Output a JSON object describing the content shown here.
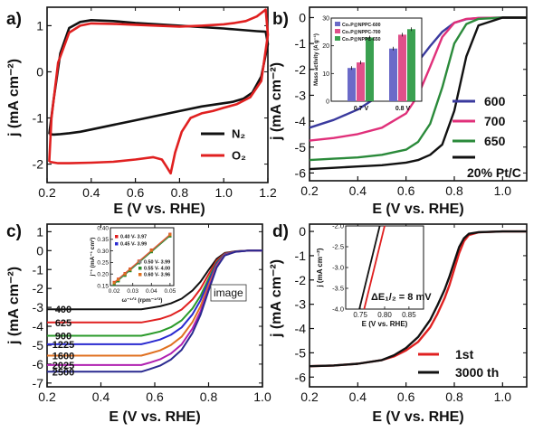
{
  "figure_tag": "image",
  "chart_data": [
    {
      "panel": "a)",
      "type": "line",
      "xlabel": "E (V vs. RHE)",
      "ylabel": "j (mA cm⁻²)",
      "xlim": [
        0.2,
        1.2
      ],
      "ylim": [
        -2.4,
        1.4
      ],
      "xticks": [
        "0.2",
        "0.4",
        "0.6",
        "0.8",
        "1.0",
        "1.2"
      ],
      "yticks": [
        "1",
        "0",
        "-1",
        "-2"
      ],
      "legend_position": "bottom-right",
      "series": [
        {
          "name": "N₂",
          "color": "#111111",
          "x": [
            0.21,
            0.23,
            0.26,
            0.3,
            0.35,
            0.4,
            0.5,
            0.6,
            0.7,
            0.8,
            0.9,
            1.0,
            1.05,
            1.1,
            1.15,
            1.19,
            1.2,
            1.17,
            1.13,
            1.09,
            1.04,
            1.0,
            0.9,
            0.8,
            0.7,
            0.6,
            0.5,
            0.4,
            0.35,
            0.3,
            0.26,
            0.23,
            0.21
          ],
          "y": [
            -1.35,
            -0.6,
            0.4,
            0.95,
            1.08,
            1.12,
            1.1,
            1.06,
            1.03,
            1.0,
            0.97,
            0.94,
            0.92,
            0.9,
            0.88,
            0.87,
            0.6,
            -0.1,
            -0.45,
            -0.58,
            -0.65,
            -0.68,
            -0.75,
            -0.85,
            -0.95,
            -1.05,
            -1.15,
            -1.25,
            -1.3,
            -1.33,
            -1.35,
            -1.36,
            -1.35
          ]
        },
        {
          "name": "O₂",
          "color": "#e02020",
          "x": [
            0.21,
            0.22,
            0.25,
            0.3,
            0.35,
            0.4,
            0.5,
            0.6,
            0.7,
            0.8,
            0.9,
            1.0,
            1.05,
            1.1,
            1.15,
            1.19,
            1.2,
            1.17,
            1.12,
            1.06,
            1.0,
            0.95,
            0.9,
            0.85,
            0.81,
            0.78,
            0.76,
            0.74,
            0.72,
            0.68,
            0.6,
            0.5,
            0.4,
            0.3,
            0.25,
            0.21
          ],
          "y": [
            -1.95,
            -1.0,
            0.2,
            0.85,
            1.0,
            1.05,
            1.04,
            1.02,
            1.0,
            0.98,
            1.0,
            1.03,
            1.06,
            1.1,
            1.2,
            1.35,
            0.8,
            -0.2,
            -0.55,
            -0.7,
            -0.78,
            -0.85,
            -0.9,
            -1.0,
            -1.3,
            -1.75,
            -2.2,
            -2.05,
            -1.9,
            -1.85,
            -1.9,
            -1.95,
            -1.97,
            -1.98,
            -1.98,
            -1.95
          ]
        }
      ]
    },
    {
      "panel": "b)",
      "type": "line",
      "xlabel": "E (V vs. RHE)",
      "ylabel": "j (mA cm⁻²)",
      "xlim": [
        0.2,
        1.1
      ],
      "ylim": [
        -6.3,
        0.4
      ],
      "xticks": [
        "0.2",
        "0.4",
        "0.6",
        "0.8",
        "1.0"
      ],
      "yticks": [
        "0",
        "-1",
        "-2",
        "-3",
        "-4",
        "-5",
        "-6"
      ],
      "legend_position": "right",
      "series": [
        {
          "name": "600",
          "color": "#3a3a9e",
          "x": [
            0.2,
            0.3,
            0.4,
            0.5,
            0.6,
            0.65,
            0.7,
            0.75,
            0.8,
            0.85,
            0.9,
            1.0,
            1.1
          ],
          "y": [
            -4.25,
            -3.95,
            -3.55,
            -2.95,
            -2.2,
            -1.7,
            -1.1,
            -0.55,
            -0.2,
            -0.06,
            -0.02,
            0.0,
            0.0
          ]
        },
        {
          "name": "700",
          "color": "#e0307a",
          "x": [
            0.2,
            0.3,
            0.4,
            0.5,
            0.6,
            0.65,
            0.7,
            0.75,
            0.8,
            0.85,
            0.9,
            1.0,
            1.1
          ],
          "y": [
            -4.75,
            -4.65,
            -4.5,
            -4.25,
            -3.7,
            -3.0,
            -1.9,
            -0.75,
            -0.2,
            -0.05,
            -0.02,
            0.0,
            0.0
          ]
        },
        {
          "name": "650",
          "color": "#2a8a3a",
          "x": [
            0.2,
            0.3,
            0.4,
            0.5,
            0.6,
            0.65,
            0.7,
            0.75,
            0.8,
            0.85,
            0.9,
            1.0,
            1.1
          ],
          "y": [
            -5.5,
            -5.45,
            -5.4,
            -5.3,
            -5.1,
            -4.8,
            -4.1,
            -2.7,
            -1.0,
            -0.25,
            -0.05,
            0.0,
            0.0
          ]
        },
        {
          "name": "20% Pt/C",
          "color": "#111111",
          "x": [
            0.2,
            0.3,
            0.4,
            0.5,
            0.6,
            0.65,
            0.7,
            0.75,
            0.8,
            0.85,
            0.9,
            1.0,
            1.1
          ],
          "y": [
            -5.85,
            -5.8,
            -5.75,
            -5.7,
            -5.6,
            -5.5,
            -5.3,
            -4.9,
            -3.6,
            -1.5,
            -0.3,
            0.0,
            0.0
          ]
        }
      ]
    },
    {
      "panel": "b) inset",
      "type": "bar",
      "ylabel": "Mass activity (A g⁻¹)",
      "ylim": [
        0,
        30
      ],
      "categories": [
        "0.7 V",
        "0.8 V"
      ],
      "series": [
        {
          "name": "Co₂P@NPPC-600",
          "color": "#6a6ac8",
          "values": [
            12,
            19
          ]
        },
        {
          "name": "Co₂P@NPPC-700",
          "color": "#e0508a",
          "values": [
            14,
            24
          ]
        },
        {
          "name": "Co₂P@NPPC-650",
          "color": "#3aa050",
          "values": [
            23,
            26
          ]
        }
      ]
    },
    {
      "panel": "c)",
      "type": "line",
      "xlabel": "E (V vs. RHE)",
      "ylabel": "j (mA cm⁻²)",
      "xlim": [
        0.2,
        1.0
      ],
      "ylim": [
        -7.2,
        1.4
      ],
      "xticks": [
        "0.2",
        "0.4",
        "0.6",
        "0.8",
        "1.0"
      ],
      "yticks": [
        "1",
        "0",
        "-1",
        "-2",
        "-3",
        "-4",
        "-5",
        "-6",
        "-7"
      ],
      "series": [
        {
          "name": "400",
          "color": "#111111",
          "plateau": -3.1,
          "curve_label": "400"
        },
        {
          "name": "625",
          "color": "#e02020",
          "plateau": -3.8,
          "curve_label": "625"
        },
        {
          "name": "900",
          "color": "#2a9a2a",
          "plateau": -4.5,
          "curve_label": "900"
        },
        {
          "name": "1225",
          "color": "#2a2ad0",
          "plateau": -4.95,
          "curve_label": "1225"
        },
        {
          "name": "1600",
          "color": "#e07020",
          "plateau": -5.55,
          "curve_label": "1600"
        },
        {
          "name": "2025",
          "color": "#b020b0",
          "plateau": -6.05,
          "curve_label": "2025"
        },
        {
          "name": "2500",
          "color": "#2a2a90",
          "plateau": -6.4,
          "curve_label": "2500"
        }
      ]
    },
    {
      "panel": "c) inset",
      "type": "scatter",
      "xlabel": "ω⁻¹ᐟ² (rpm⁻¹ᐟ²)",
      "ylabel": "j⁻¹ (mA⁻¹ cm²)",
      "xlim": [
        0.018,
        0.052
      ],
      "ylim": [
        0.15,
        0.4
      ],
      "xticks": [
        "0.02",
        "0.03",
        "0.04",
        "0.05"
      ],
      "yticks": [
        "0.15",
        "0.20",
        "0.25",
        "0.30",
        "0.35",
        "0.40"
      ],
      "x": [
        0.02,
        0.0222,
        0.0258,
        0.0286,
        0.0333,
        0.04,
        0.05
      ],
      "series": [
        {
          "name": "0.40 V- 3.97",
          "color": "#e02020",
          "y": [
            0.164,
            0.178,
            0.202,
            0.222,
            0.256,
            0.304,
            0.372
          ]
        },
        {
          "name": "0.45 V- 3.99",
          "color": "#2a2ad0",
          "y": [
            0.16,
            0.174,
            0.198,
            0.218,
            0.252,
            0.3,
            0.368
          ]
        },
        {
          "name": "0.50 V- 3.99",
          "color": "#888888",
          "y": [
            0.158,
            0.172,
            0.196,
            0.216,
            0.25,
            0.298,
            0.366
          ]
        },
        {
          "name": "0.55 V- 4.00",
          "color": "#2a8a2a",
          "y": [
            0.156,
            0.17,
            0.194,
            0.214,
            0.248,
            0.296,
            0.364
          ]
        },
        {
          "name": "0.60 V- 3.96",
          "color": "#e07020",
          "y": [
            0.162,
            0.176,
            0.2,
            0.22,
            0.254,
            0.302,
            0.37
          ]
        }
      ]
    },
    {
      "panel": "d)",
      "type": "line",
      "xlabel": "E (V vs. RHE)",
      "ylabel": "j (mA cm⁻²)",
      "xlim": [
        0.2,
        1.1
      ],
      "ylim": [
        -6.4,
        0.3
      ],
      "xticks": [
        "0.2",
        "0.4",
        "0.6",
        "0.8",
        "1.0"
      ],
      "yticks": [
        "0",
        "-1",
        "-2",
        "-3",
        "-4",
        "-5",
        "-6"
      ],
      "legend_position": "bottom-right",
      "series": [
        {
          "name": "1st",
          "color": "#e02020",
          "x": [
            0.2,
            0.3,
            0.4,
            0.5,
            0.55,
            0.6,
            0.65,
            0.7,
            0.73,
            0.76,
            0.78,
            0.8,
            0.82,
            0.84,
            0.86,
            0.9,
            1.0,
            1.1
          ],
          "y": [
            -5.55,
            -5.52,
            -5.45,
            -5.3,
            -5.15,
            -4.9,
            -4.55,
            -3.95,
            -3.4,
            -2.75,
            -2.2,
            -1.55,
            -0.9,
            -0.4,
            -0.15,
            -0.04,
            0.0,
            0.0
          ]
        },
        {
          "name": "3000 th",
          "color": "#111111",
          "x": [
            0.2,
            0.3,
            0.4,
            0.5,
            0.55,
            0.6,
            0.65,
            0.7,
            0.73,
            0.76,
            0.78,
            0.8,
            0.82,
            0.84,
            0.86,
            0.9,
            1.0,
            1.1
          ],
          "y": [
            -5.55,
            -5.52,
            -5.45,
            -5.3,
            -5.1,
            -4.8,
            -4.35,
            -3.65,
            -3.05,
            -2.4,
            -1.85,
            -1.25,
            -0.65,
            -0.28,
            -0.1,
            -0.03,
            0.0,
            0.0
          ]
        }
      ]
    },
    {
      "panel": "d) inset",
      "type": "line",
      "xlabel": "E (V vs. RHE)",
      "ylabel": "j (mA cm⁻²)",
      "xlim": [
        0.72,
        0.88
      ],
      "ylim": [
        -4.0,
        -2.0
      ],
      "xticks": [
        "0.75",
        "0.80",
        "0.85"
      ],
      "yticks": [
        "-2.0",
        "-2.5",
        "-3.0",
        "-3.5",
        "-4.0"
      ],
      "annotation": "ΔE₁/₂ = 8 mV",
      "series": [
        {
          "name": "1st",
          "color": "#e02020",
          "x": [
            0.758,
            0.8
          ],
          "y": [
            -4.0,
            -2.0
          ]
        },
        {
          "name": "3000 th",
          "color": "#111111",
          "x": [
            0.748,
            0.79
          ],
          "y": [
            -4.0,
            -2.0
          ]
        }
      ]
    }
  ]
}
